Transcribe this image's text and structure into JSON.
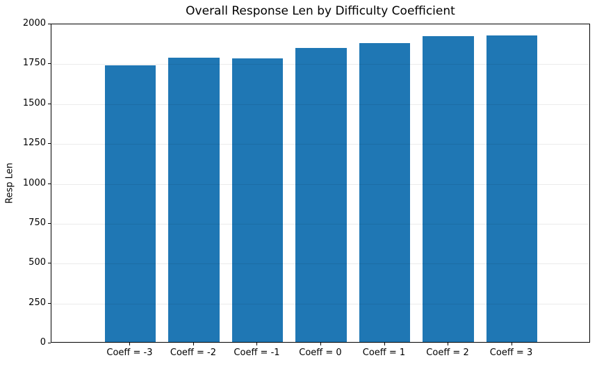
{
  "chart_data": {
    "type": "bar",
    "title": "Overall Response Len by Difficulty Coefficient",
    "xlabel": "",
    "ylabel": "Resp Len",
    "categories": [
      "Coeff = -3",
      "Coeff = -2",
      "Coeff = -1",
      "Coeff = 0",
      "Coeff = 1",
      "Coeff = 2",
      "Coeff = 3"
    ],
    "values": [
      1733,
      1781,
      1778,
      1843,
      1873,
      1917,
      1920
    ],
    "ylim": [
      0,
      2000
    ],
    "yticks": [
      0,
      250,
      500,
      750,
      1000,
      1250,
      1500,
      1750,
      2000
    ],
    "grid": "y-axis horizontal gridlines",
    "legend": null,
    "bar_width_fraction": 0.8,
    "x_margin_units": 0.74
  },
  "colors": {
    "bar": "#1f77b4",
    "gridline_rgba": "rgba(0,0,0,0.08)",
    "spine": "#000000",
    "background": "#ffffff",
    "text": "#000000"
  }
}
